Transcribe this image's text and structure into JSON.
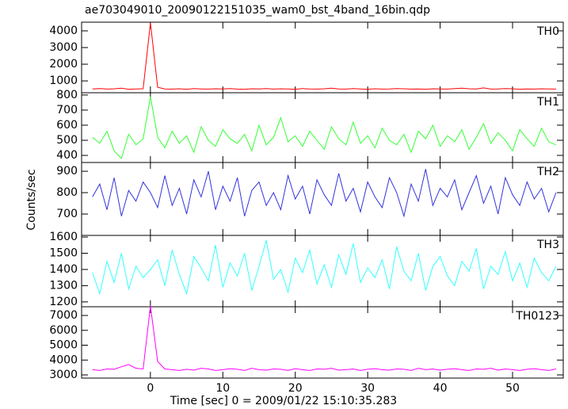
{
  "title": "ae703049010_20090122151035_wam0_bst_4band_16bin.qdp",
  "xlabel": "Time [sec] 0 = 2009/01/22 15:10:35.283",
  "ylabel": "Counts/sec",
  "chart_data": [
    {
      "type": "line",
      "label": "TH0",
      "color": "#ff0000",
      "xlim": [
        -9.5,
        57
      ],
      "xticks": [
        0,
        10,
        20,
        30,
        40,
        50
      ],
      "ylim": [
        290,
        4520
      ],
      "yticks": [
        1000,
        2000,
        3000,
        4000
      ],
      "x": [
        -8,
        -7,
        -6,
        -5,
        -4,
        -3,
        -2,
        -1,
        0,
        1,
        2,
        3,
        4,
        5,
        6,
        7,
        8,
        9,
        10,
        11,
        12,
        13,
        14,
        15,
        16,
        17,
        18,
        19,
        20,
        21,
        22,
        23,
        24,
        25,
        26,
        27,
        28,
        29,
        30,
        31,
        32,
        33,
        34,
        35,
        36,
        37,
        38,
        39,
        40,
        41,
        42,
        43,
        44,
        45,
        46,
        47,
        48,
        49,
        50,
        51,
        52,
        53,
        54,
        55,
        56
      ],
      "values": [
        520,
        540,
        510,
        530,
        560,
        500,
        520,
        530,
        4480,
        620,
        520,
        510,
        530,
        500,
        540,
        520,
        510,
        530,
        520,
        540,
        510,
        500,
        530,
        520,
        540,
        510,
        530,
        520,
        500,
        540,
        520,
        510,
        530,
        560,
        520,
        510,
        540,
        520,
        500,
        530,
        510,
        520,
        540,
        530,
        510,
        520,
        500,
        530,
        520,
        510,
        540,
        560,
        530,
        520,
        580,
        510,
        520,
        540,
        530,
        500,
        520,
        510,
        530,
        520,
        510
      ]
    },
    {
      "type": "line",
      "label": "TH1",
      "color": "#33ff33",
      "xlim": [
        -9.5,
        57
      ],
      "xticks": [
        0,
        10,
        20,
        30,
        40,
        50
      ],
      "ylim": [
        353,
        815
      ],
      "yticks": [
        400,
        500,
        600,
        700,
        800
      ],
      "x": [
        -8,
        -7,
        -6,
        -5,
        -4,
        -3,
        -2,
        -1,
        0,
        1,
        2,
        3,
        4,
        5,
        6,
        7,
        8,
        9,
        10,
        11,
        12,
        13,
        14,
        15,
        16,
        17,
        18,
        19,
        20,
        21,
        22,
        23,
        24,
        25,
        26,
        27,
        28,
        29,
        30,
        31,
        32,
        33,
        34,
        35,
        36,
        37,
        38,
        39,
        40,
        41,
        42,
        43,
        44,
        45,
        46,
        47,
        48,
        49,
        50,
        51,
        52,
        53,
        54,
        55,
        56
      ],
      "values": [
        520,
        480,
        560,
        430,
        380,
        540,
        470,
        510,
        790,
        520,
        450,
        560,
        480,
        530,
        420,
        590,
        500,
        460,
        570,
        510,
        480,
        540,
        430,
        600,
        470,
        520,
        650,
        490,
        530,
        460,
        560,
        500,
        440,
        590,
        510,
        470,
        620,
        480,
        530,
        450,
        580,
        500,
        470,
        540,
        420,
        560,
        510,
        600,
        460,
        530,
        490,
        570,
        440,
        520,
        610,
        480,
        550,
        500,
        430,
        570,
        510,
        460,
        580,
        490,
        470
      ]
    },
    {
      "type": "line",
      "label": "TH2",
      "color": "#3333dd",
      "xlim": [
        -9.5,
        57
      ],
      "xticks": [
        0,
        10,
        20,
        30,
        40,
        50
      ],
      "ylim": [
        600,
        941
      ],
      "yticks": [
        700,
        800,
        900
      ],
      "x": [
        -8,
        -7,
        -6,
        -5,
        -4,
        -3,
        -2,
        -1,
        0,
        1,
        2,
        3,
        4,
        5,
        6,
        7,
        8,
        9,
        10,
        11,
        12,
        13,
        14,
        15,
        16,
        17,
        18,
        19,
        20,
        21,
        22,
        23,
        24,
        25,
        26,
        27,
        28,
        29,
        30,
        31,
        32,
        33,
        34,
        35,
        36,
        37,
        38,
        39,
        40,
        41,
        42,
        43,
        44,
        45,
        46,
        47,
        48,
        49,
        50,
        51,
        52,
        53,
        54,
        55,
        56
      ],
      "values": [
        780,
        840,
        720,
        870,
        690,
        810,
        760,
        850,
        800,
        730,
        880,
        740,
        820,
        700,
        860,
        780,
        900,
        720,
        830,
        760,
        870,
        690,
        810,
        850,
        740,
        800,
        720,
        880,
        770,
        830,
        700,
        860,
        790,
        740,
        890,
        760,
        820,
        710,
        850,
        780,
        730,
        870,
        800,
        690,
        840,
        760,
        910,
        740,
        820,
        780,
        860,
        720,
        800,
        880,
        750,
        830,
        700,
        870,
        790,
        740,
        850,
        770,
        820,
        710,
        800
      ]
    },
    {
      "type": "line",
      "label": "TH3",
      "color": "#33ffff",
      "xlim": [
        -9.5,
        57
      ],
      "xticks": [
        0,
        10,
        20,
        30,
        40,
        50
      ],
      "ylim": [
        1170,
        1610
      ],
      "yticks": [
        1200,
        1300,
        1400,
        1500,
        1600
      ],
      "x": [
        -8,
        -7,
        -6,
        -5,
        -4,
        -3,
        -2,
        -1,
        0,
        1,
        2,
        3,
        4,
        5,
        6,
        7,
        8,
        9,
        10,
        11,
        12,
        13,
        14,
        15,
        16,
        17,
        18,
        19,
        20,
        21,
        22,
        23,
        24,
        25,
        26,
        27,
        28,
        29,
        30,
        31,
        32,
        33,
        34,
        35,
        36,
        37,
        38,
        39,
        40,
        41,
        42,
        43,
        44,
        45,
        46,
        47,
        48,
        49,
        50,
        51,
        52,
        53,
        54,
        55,
        56
      ],
      "values": [
        1380,
        1250,
        1450,
        1320,
        1500,
        1280,
        1420,
        1350,
        1400,
        1460,
        1300,
        1520,
        1370,
        1250,
        1480,
        1410,
        1330,
        1550,
        1290,
        1440,
        1360,
        1500,
        1270,
        1420,
        1580,
        1340,
        1400,
        1260,
        1470,
        1380,
        1520,
        1310,
        1430,
        1290,
        1490,
        1370,
        1560,
        1320,
        1410,
        1350,
        1460,
        1280,
        1540,
        1390,
        1330,
        1500,
        1270,
        1420,
        1480,
        1360,
        1300,
        1450,
        1390,
        1530,
        1280,
        1420,
        1370,
        1510,
        1330,
        1440,
        1290,
        1470,
        1380,
        1330,
        1420
      ]
    },
    {
      "type": "line",
      "label": "TH0123",
      "color": "#ff00ff",
      "xlim": [
        -9.5,
        57
      ],
      "xticks": [
        0,
        10,
        20,
        30,
        40,
        50
      ],
      "ylim": [
        2787,
        7587
      ],
      "yticks": [
        3000,
        4000,
        5000,
        6000,
        7000
      ],
      "x": [
        -8,
        -7,
        -6,
        -5,
        -4,
        -3,
        -2,
        -1,
        0,
        1,
        2,
        3,
        4,
        5,
        6,
        7,
        8,
        9,
        10,
        11,
        12,
        13,
        14,
        15,
        16,
        17,
        18,
        19,
        20,
        21,
        22,
        23,
        24,
        25,
        26,
        27,
        28,
        29,
        30,
        31,
        32,
        33,
        34,
        35,
        36,
        37,
        38,
        39,
        40,
        41,
        42,
        43,
        44,
        45,
        46,
        47,
        48,
        49,
        50,
        51,
        52,
        53,
        54,
        55,
        56
      ],
      "values": [
        3350,
        3300,
        3400,
        3380,
        3550,
        3700,
        3450,
        3400,
        7650,
        3900,
        3400,
        3350,
        3300,
        3380,
        3320,
        3450,
        3400,
        3300,
        3350,
        3420,
        3380,
        3300,
        3450,
        3350,
        3320,
        3400,
        3380,
        3300,
        3420,
        3350,
        3300,
        3400,
        3380,
        3450,
        3320,
        3350,
        3400,
        3300,
        3380,
        3420,
        3350,
        3320,
        3400,
        3380,
        3300,
        3450,
        3350,
        3400,
        3320,
        3380,
        3420,
        3350,
        3300,
        3400,
        3380,
        3450,
        3320,
        3400,
        3350,
        3300,
        3380,
        3420,
        3350,
        3300,
        3400
      ]
    }
  ]
}
